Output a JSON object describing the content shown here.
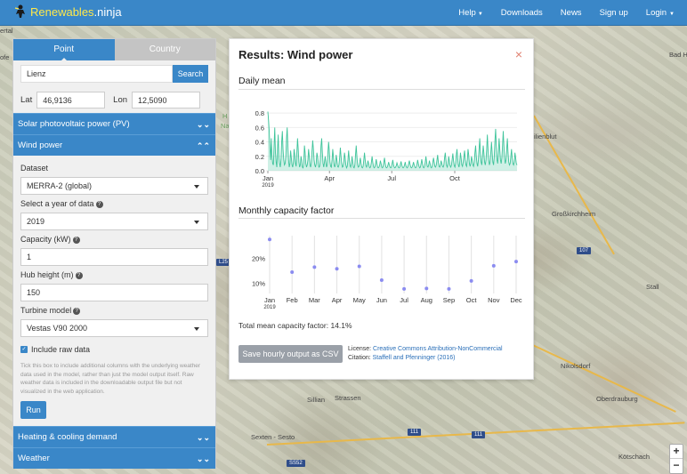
{
  "nav": {
    "brand": {
      "part1": "Renewables",
      "part2": ".ninja"
    },
    "links": [
      {
        "label": "Help",
        "has_caret": true
      },
      {
        "label": "Downloads"
      },
      {
        "label": "News"
      },
      {
        "label": "Sign up"
      },
      {
        "label": "Login",
        "has_caret": true
      }
    ]
  },
  "map": {
    "labels": [
      "Sillian",
      "Strassen",
      "Nikolsdorf",
      "Oberdrauburg",
      "Großkirchheim",
      "Stall",
      "Kötschach",
      "Sexten - Sesto",
      "Bad H",
      "ilienblut",
      "ertal",
      "ofe",
      "Na",
      "H"
    ],
    "road_badges": [
      "107",
      "111",
      "111",
      "SS52",
      "L25"
    ],
    "zoom_in": "+",
    "zoom_out": "−"
  },
  "panel": {
    "tabs": [
      "Point",
      "Country"
    ],
    "location_value": "Lienz",
    "search_label": "Search",
    "lat_label": "Lat",
    "lat_value": "46,9136",
    "lon_label": "Lon",
    "lon_value": "12,5090",
    "sections": {
      "solar": "Solar photovoltaic power (PV)",
      "wind": "Wind power",
      "heating": "Heating & cooling demand",
      "weather": "Weather"
    },
    "fields": {
      "dataset_label": "Dataset",
      "dataset_value": "MERRA-2 (global)",
      "year_label": "Select a year of data",
      "year_value": "2019",
      "capacity_label": "Capacity (kW)",
      "capacity_value": "1",
      "hub_label": "Hub height (m)",
      "hub_value": "150",
      "turbine_label": "Turbine model",
      "turbine_value": "Vestas V90 2000",
      "raw_label": "Include raw data",
      "raw_checked": true,
      "raw_help": "Tick this box to include additional columns with the underlying weather data used in the model, rather than just the model output itself. Raw weather data is included in the downloadable output file but not visualized in the web application."
    },
    "run_label": "Run"
  },
  "results": {
    "title": "Results: Wind power",
    "close": "×",
    "daily_title": "Daily mean",
    "monthly_title": "Monthly capacity factor",
    "total": "Total mean capacity factor: 14.1%",
    "csv_label": "Save hourly output as CSV",
    "license_label": "License: ",
    "license_link": "Creative Commons Attribution-NonCommercial",
    "citation_label": "Citation: ",
    "citation_link": "Staffell and Pfenninger (2016)"
  },
  "chart_data": [
    {
      "type": "area",
      "title": "Daily mean",
      "series_color": "#3fc49b",
      "ylim": [
        0,
        0.9
      ],
      "yticks": [
        "0.0",
        "0.2",
        "0.4",
        "0.6",
        "0.8"
      ],
      "xticks": [
        {
          "label": "Jan",
          "sub": "2019",
          "day": 0
        },
        {
          "label": "Apr",
          "day": 90
        },
        {
          "label": "Jul",
          "day": 181
        },
        {
          "label": "Oct",
          "day": 273
        }
      ],
      "days": 365,
      "values": [
        0.82,
        0.7,
        0.55,
        0.3,
        0.15,
        0.45,
        0.2,
        0.1,
        0.08,
        0.35,
        0.6,
        0.25,
        0.12,
        0.05,
        0.3,
        0.5,
        0.2,
        0.1,
        0.05,
        0.15,
        0.4,
        0.55,
        0.3,
        0.15,
        0.08,
        0.1,
        0.2,
        0.45,
        0.6,
        0.35,
        0.15,
        0.05,
        0.1,
        0.28,
        0.18,
        0.08,
        0.05,
        0.12,
        0.3,
        0.22,
        0.1,
        0.06,
        0.25,
        0.45,
        0.3,
        0.12,
        0.05,
        0.08,
        0.2,
        0.15,
        0.05,
        0.04,
        0.1,
        0.35,
        0.25,
        0.1,
        0.05,
        0.08,
        0.15,
        0.3,
        0.2,
        0.08,
        0.05,
        0.12,
        0.28,
        0.42,
        0.3,
        0.15,
        0.08,
        0.05,
        0.1,
        0.25,
        0.2,
        0.1,
        0.05,
        0.06,
        0.15,
        0.35,
        0.45,
        0.25,
        0.1,
        0.05,
        0.12,
        0.2,
        0.12,
        0.05,
        0.08,
        0.25,
        0.4,
        0.28,
        0.12,
        0.06,
        0.05,
        0.15,
        0.3,
        0.2,
        0.08,
        0.05,
        0.1,
        0.22,
        0.15,
        0.06,
        0.05,
        0.08,
        0.18,
        0.32,
        0.2,
        0.1,
        0.05,
        0.06,
        0.12,
        0.25,
        0.18,
        0.08,
        0.04,
        0.06,
        0.15,
        0.28,
        0.16,
        0.07,
        0.05,
        0.1,
        0.2,
        0.12,
        0.05,
        0.04,
        0.08,
        0.22,
        0.35,
        0.2,
        0.08,
        0.05,
        0.06,
        0.12,
        0.18,
        0.1,
        0.05,
        0.04,
        0.06,
        0.15,
        0.25,
        0.15,
        0.07,
        0.05,
        0.08,
        0.14,
        0.1,
        0.05,
        0.04,
        0.06,
        0.12,
        0.2,
        0.12,
        0.06,
        0.04,
        0.05,
        0.1,
        0.16,
        0.1,
        0.05,
        0.04,
        0.05,
        0.08,
        0.14,
        0.1,
        0.05,
        0.04,
        0.06,
        0.12,
        0.18,
        0.1,
        0.05,
        0.04,
        0.05,
        0.08,
        0.12,
        0.08,
        0.05,
        0.04,
        0.05,
        0.1,
        0.15,
        0.09,
        0.05,
        0.04,
        0.05,
        0.07,
        0.11,
        0.08,
        0.05,
        0.04,
        0.05,
        0.09,
        0.13,
        0.08,
        0.05,
        0.04,
        0.05,
        0.08,
        0.12,
        0.07,
        0.05,
        0.04,
        0.06,
        0.1,
        0.14,
        0.09,
        0.05,
        0.04,
        0.05,
        0.08,
        0.12,
        0.08,
        0.05,
        0.04,
        0.05,
        0.09,
        0.15,
        0.1,
        0.06,
        0.04,
        0.05,
        0.1,
        0.16,
        0.1,
        0.05,
        0.04,
        0.06,
        0.12,
        0.2,
        0.12,
        0.06,
        0.05,
        0.08,
        0.14,
        0.1,
        0.05,
        0.04,
        0.06,
        0.12,
        0.18,
        0.12,
        0.06,
        0.05,
        0.08,
        0.15,
        0.22,
        0.12,
        0.06,
        0.05,
        0.08,
        0.14,
        0.1,
        0.06,
        0.05,
        0.08,
        0.18,
        0.25,
        0.15,
        0.07,
        0.05,
        0.1,
        0.2,
        0.14,
        0.07,
        0.05,
        0.08,
        0.16,
        0.24,
        0.14,
        0.07,
        0.05,
        0.1,
        0.22,
        0.3,
        0.18,
        0.08,
        0.05,
        0.12,
        0.25,
        0.18,
        0.08,
        0.06,
        0.12,
        0.2,
        0.28,
        0.15,
        0.08,
        0.06,
        0.15,
        0.3,
        0.22,
        0.1,
        0.06,
        0.1,
        0.2,
        0.15,
        0.08,
        0.06,
        0.12,
        0.25,
        0.35,
        0.2,
        0.1,
        0.06,
        0.15,
        0.3,
        0.45,
        0.25,
        0.12,
        0.08,
        0.2,
        0.35,
        0.25,
        0.12,
        0.08,
        0.15,
        0.3,
        0.5,
        0.3,
        0.15,
        0.08,
        0.12,
        0.25,
        0.4,
        0.25,
        0.12,
        0.08,
        0.2,
        0.42,
        0.58,
        0.35,
        0.15,
        0.1,
        0.25,
        0.45,
        0.3,
        0.15,
        0.1,
        0.18,
        0.35,
        0.55,
        0.35,
        0.18,
        0.1,
        0.15,
        0.3,
        0.45,
        0.25,
        0.12,
        0.08,
        0.1,
        0.2,
        0.3,
        0.18,
        0.1,
        0.08,
        0.12,
        0.25,
        0.18,
        0.1,
        0.08
      ]
    },
    {
      "type": "scatter",
      "title": "Monthly capacity factor",
      "series_color": "#8b8cf0",
      "categories": [
        "Jan",
        "Feb",
        "Mar",
        "Apr",
        "May",
        "Jun",
        "Jul",
        "Aug",
        "Sep",
        "Oct",
        "Nov",
        "Dec"
      ],
      "values": [
        27.5,
        14.5,
        16.5,
        15.8,
        16.8,
        11.3,
        7.8,
        8.0,
        7.8,
        11.0,
        17.0,
        18.7
      ],
      "yticks": [
        {
          "label": "10%",
          "v": 10
        },
        {
          "label": "20%",
          "v": 20
        }
      ],
      "ylim": [
        6,
        29
      ]
    }
  ]
}
